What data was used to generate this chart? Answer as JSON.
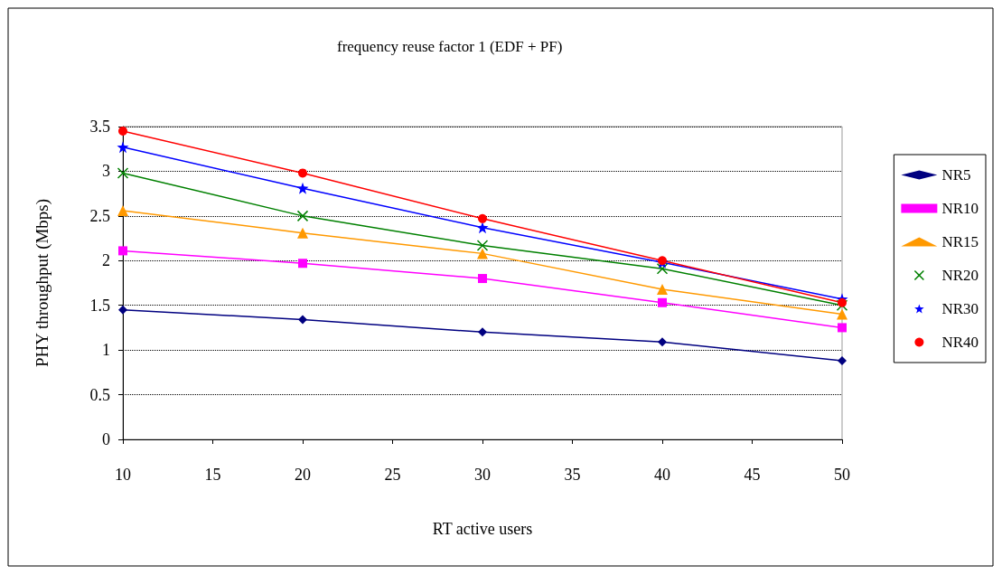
{
  "chart_data": {
    "type": "line",
    "title": "frequency reuse factor 1 (EDF + PF)",
    "xlabel": "RT active users",
    "ylabel": "PHY throughput (Mbps)",
    "x": [
      10,
      20,
      30,
      40,
      50
    ],
    "series": [
      {
        "name": "NR5",
        "color": "#000080",
        "marker": "diamond",
        "values": [
          1.45,
          1.34,
          1.2,
          1.09,
          0.88
        ]
      },
      {
        "name": "NR10",
        "color": "#ff00ff",
        "marker": "square",
        "values": [
          2.11,
          1.97,
          1.8,
          1.53,
          1.25
        ]
      },
      {
        "name": "NR15",
        "color": "#ff9900",
        "marker": "triangle",
        "values": [
          2.56,
          2.31,
          2.08,
          1.68,
          1.4
        ]
      },
      {
        "name": "NR20",
        "color": "#008000",
        "marker": "cross",
        "values": [
          2.98,
          2.5,
          2.17,
          1.91,
          1.5
        ]
      },
      {
        "name": "NR30",
        "color": "#0000ff",
        "marker": "star",
        "values": [
          3.27,
          2.81,
          2.37,
          1.98,
          1.57
        ]
      },
      {
        "name": "NR40",
        "color": "#ff0000",
        "marker": "circle",
        "values": [
          3.45,
          2.98,
          2.47,
          2.0,
          1.53
        ]
      }
    ],
    "xlim": [
      10,
      50
    ],
    "xticks": [
      10,
      15,
      20,
      25,
      30,
      35,
      40,
      45,
      50
    ],
    "ylim": [
      0,
      3.5
    ],
    "yticks": [
      0,
      0.5,
      1,
      1.5,
      2,
      2.5,
      3,
      3.5
    ],
    "grid": "y",
    "legend": "right",
    "line_style": "solid"
  }
}
